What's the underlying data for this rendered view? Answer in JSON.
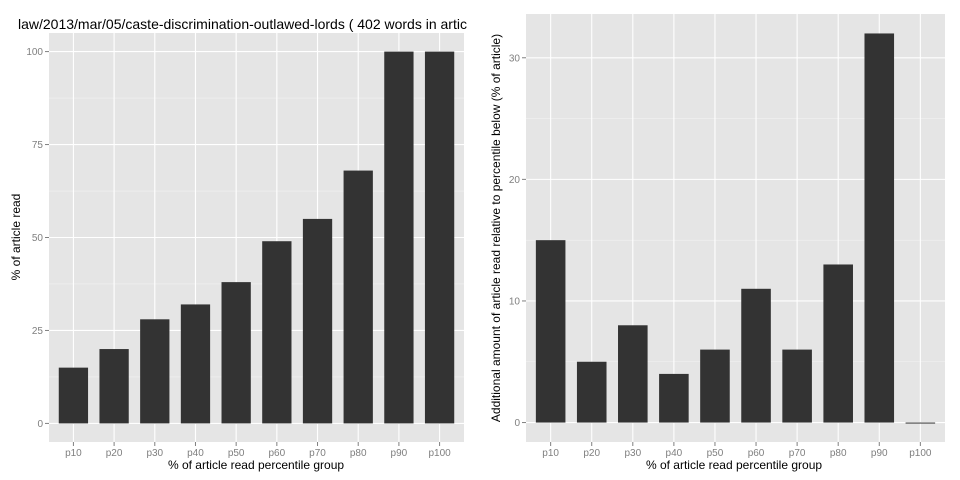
{
  "chart_data": [
    {
      "type": "bar",
      "title": "law/2013/mar/05/caste-discrimination-outlawed-lords ( 402 words in artic",
      "xlabel": "% of article read percentile group",
      "ylabel": "% of article read",
      "categories": [
        "p10",
        "p20",
        "p30",
        "p40",
        "p50",
        "p60",
        "p70",
        "p80",
        "p90",
        "p100"
      ],
      "values": [
        15,
        20,
        28,
        32,
        38,
        49,
        55,
        68,
        100,
        100
      ],
      "yticks": [
        0,
        25,
        50,
        75,
        100
      ],
      "ylim": [
        -5,
        105
      ],
      "grid": true,
      "colors": {
        "bar": "#333333",
        "panel": "#e5e5e5",
        "grid": "#ffffff",
        "tick_text": "#7f7f7f"
      }
    },
    {
      "type": "bar",
      "title": "",
      "xlabel": "% of article read percentile group",
      "ylabel": "Additional amount of article read relative to percentile below (% of article)",
      "categories": [
        "p10",
        "p20",
        "p30",
        "p40",
        "p50",
        "p60",
        "p70",
        "p80",
        "p90",
        "p100"
      ],
      "values": [
        15,
        5,
        8,
        4,
        6,
        11,
        6,
        13,
        32,
        0
      ],
      "yticks": [
        0,
        10,
        20,
        30
      ],
      "ylim": [
        -1.6,
        33.6
      ],
      "grid": true,
      "colors": {
        "bar": "#333333",
        "panel": "#e5e5e5",
        "grid": "#ffffff",
        "tick_text": "#7f7f7f"
      }
    }
  ]
}
